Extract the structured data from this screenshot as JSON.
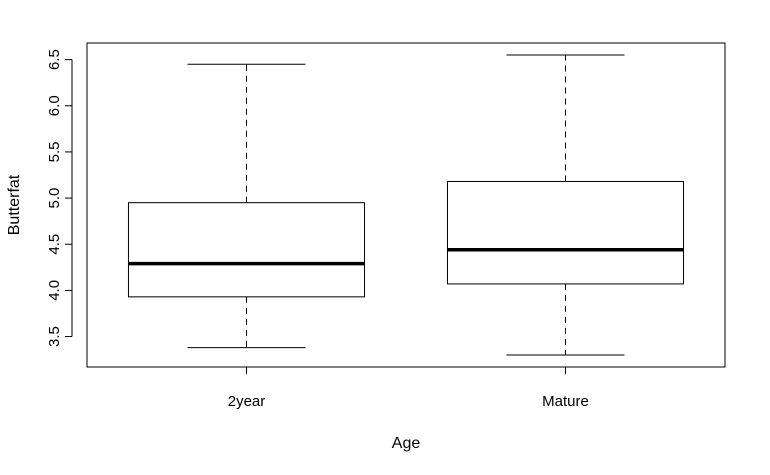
{
  "chart_data": {
    "type": "boxplot",
    "title": "",
    "xlabel": "Age",
    "ylabel": "Butterfat",
    "categories": [
      "2year",
      "Mature"
    ],
    "series": [
      {
        "category": "2year",
        "whisker_low": 3.38,
        "q1": 3.93,
        "median": 4.29,
        "q3": 4.95,
        "whisker_high": 6.45
      },
      {
        "category": "Mature",
        "whisker_low": 3.3,
        "q1": 4.07,
        "median": 4.44,
        "q3": 5.18,
        "whisker_high": 6.55
      }
    ],
    "yticks": [
      "3.5",
      "4.0",
      "4.5",
      "5.0",
      "5.5",
      "6.0",
      "6.5"
    ],
    "ylim": [
      3.17,
      6.68
    ],
    "grid": false
  }
}
